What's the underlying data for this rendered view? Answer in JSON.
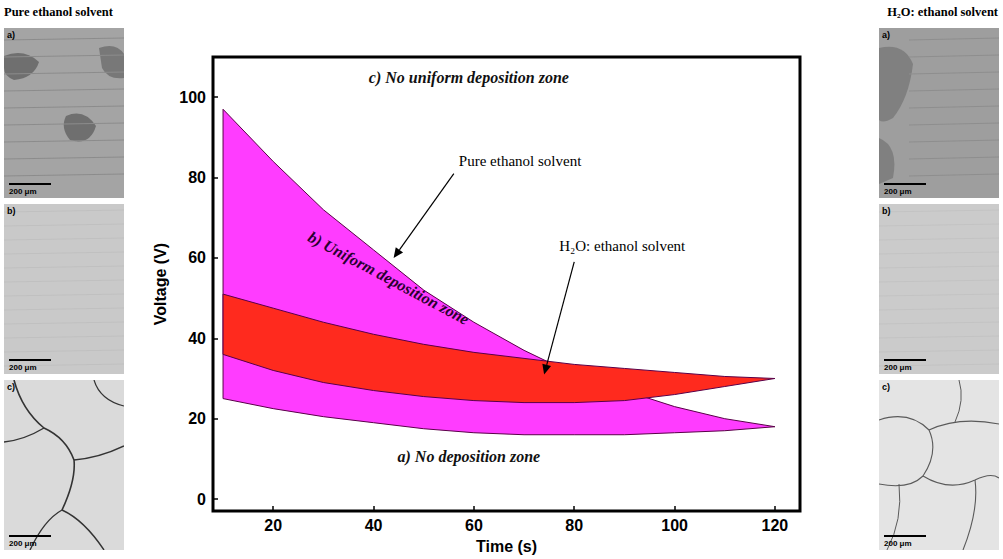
{
  "chart_data": {
    "type": "band",
    "xlabel": "Time (s)",
    "ylabel": "Voltage (V)",
    "xlim": [
      8,
      125
    ],
    "ylim": [
      -3,
      110
    ],
    "xticks": [
      20,
      40,
      60,
      80,
      100,
      120
    ],
    "yticks": [
      0,
      20,
      40,
      60,
      80,
      100
    ],
    "grid": false,
    "x": [
      10,
      20,
      30,
      40,
      50,
      60,
      70,
      80,
      90,
      100,
      110,
      120
    ],
    "series": [
      {
        "name": "Pure ethanol solvent",
        "color": "#ff3cff",
        "upper": [
          97,
          84,
          72,
          62,
          52,
          44,
          37,
          31,
          27,
          23,
          20,
          18
        ],
        "lower": [
          25,
          22.5,
          20.5,
          19,
          17.5,
          16.5,
          16,
          16,
          16,
          16.5,
          17,
          18
        ],
        "annotation": {
          "x": 57,
          "y": 84,
          "arrow_from": [
            56,
            81
          ],
          "arrow_to": [
            44,
            60
          ]
        }
      },
      {
        "name": "H₂O: ethanol solvent",
        "color": "#ff2a1e",
        "upper": [
          51,
          47.5,
          44,
          41,
          38.5,
          36.5,
          35,
          33.5,
          32.5,
          31.5,
          30.5,
          30
        ],
        "lower": [
          36,
          32,
          29,
          27,
          25.5,
          24.5,
          24,
          24,
          24.5,
          26,
          28,
          30
        ],
        "annotation": {
          "x": 77,
          "y": 63,
          "arrow_from": [
            80,
            59
          ],
          "arrow_to": [
            74,
            31
          ]
        }
      }
    ],
    "annotations": [
      {
        "text": "c) No uniform deposition zone",
        "x": 59,
        "y": 105
      },
      {
        "text": "b) Uniform deposition zone",
        "x": 43,
        "y": 55
      },
      {
        "text": "a) No deposition zone",
        "x": 59,
        "y": 10.5
      }
    ]
  },
  "panels": {
    "left": {
      "title": "Pure ethanol solvent",
      "images": [
        {
          "letter": "a)",
          "scale_bar": "200 μm"
        },
        {
          "letter": "b)",
          "scale_bar": "200 μm"
        },
        {
          "letter": "c)",
          "scale_bar": "200 μm"
        }
      ]
    },
    "right": {
      "title": "H₂O: ethanol solvent",
      "images": [
        {
          "letter": "a)",
          "scale_bar": "200 μm"
        },
        {
          "letter": "b)",
          "scale_bar": "200 μm"
        },
        {
          "letter": "c)",
          "scale_bar": "200 μm"
        }
      ]
    }
  }
}
